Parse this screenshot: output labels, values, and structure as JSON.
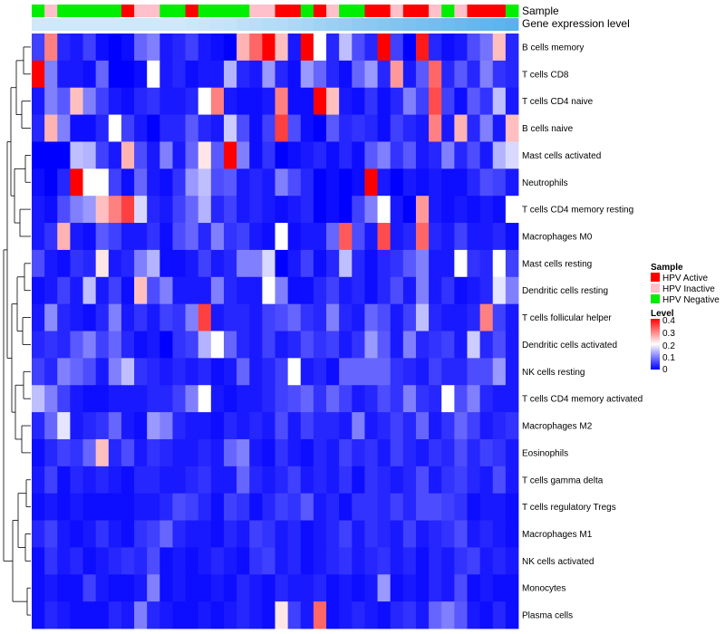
{
  "chart_data": {
    "type": "heatmap",
    "title": "",
    "annotation_labels": {
      "sample": "Sample",
      "expression": "Gene expression level"
    },
    "sample_categories": [
      "HPV Active",
      "HPV Inactive",
      "HPV Negative"
    ],
    "sample_colors": {
      "HPV Active": "#ff0000",
      "HPV Inactive": "#ffc0cb",
      "HPV Negative": "#00ee00"
    },
    "sample_groups": [
      "N",
      "I",
      "N",
      "N",
      "N",
      "N",
      "N",
      "A",
      "I",
      "I",
      "N",
      "N",
      "A",
      "N",
      "N",
      "N",
      "N",
      "I",
      "I",
      "A",
      "A",
      "N",
      "A",
      "I",
      "N",
      "N",
      "A",
      "A",
      "I",
      "A",
      "A",
      "I",
      "N",
      "I",
      "A",
      "A",
      "A",
      "N"
    ],
    "expression_levels": [
      0,
      0,
      0,
      0,
      0,
      0,
      0,
      0,
      0,
      0,
      0,
      0,
      0.02,
      0.05,
      0.08,
      0.1,
      0.15,
      0.18,
      0.22,
      0.25,
      0.3,
      0.35,
      0.4,
      0.45,
      0.5,
      0.55,
      0.58,
      0.62,
      0.66,
      0.7,
      0.74,
      0.78,
      0.82,
      0.86,
      0.9,
      0.93,
      0.97,
      1.0
    ],
    "expression_color_range": [
      "#cfe8fa",
      "#5ab2ec"
    ],
    "legend": {
      "sample_title": "Sample",
      "level_title": "Level",
      "level_ticks": [
        "0.4",
        "0.3",
        "0.2",
        "0.1",
        "0"
      ]
    },
    "color_scale": {
      "min": 0,
      "mid": 0.2,
      "max": 0.4,
      "colors": [
        "#0000ff",
        "#ffffff",
        "#ff0000"
      ]
    },
    "rows": [
      "B cells memory",
      "T cells CD8",
      "T cells CD4 naive",
      "B cells naive",
      "Mast cells activated",
      "Neutrophils",
      "T cells CD4 memory resting",
      "Macrophages M0",
      "Mast cells resting",
      "Dendritic cells resting",
      "T cells follicular helper",
      "Dendritic cells activated",
      "NK cells resting",
      "T cells CD4 memory activated",
      "Macrophages M2",
      "Eosinophils",
      "T cells gamma delta",
      "T cells regulatory  Tregs",
      "Macrophages M1",
      "NK cells activated",
      "Monocytes",
      "Plasma cells"
    ],
    "values": [
      [
        0.05,
        0.3,
        0.03,
        0.02,
        0.05,
        0.01,
        0.0,
        0.01,
        0.08,
        0.1,
        0.02,
        0.03,
        0.05,
        0.02,
        0.01,
        0.0,
        0.26,
        0.32,
        0.4,
        0.25,
        0.02,
        0.4,
        0.2,
        0.03,
        0.15,
        0.06,
        0.03,
        0.4,
        0.05,
        0.0,
        0.38,
        0.03,
        0.01,
        0.02,
        0.06,
        0.09,
        0.25,
        0.03
      ],
      [
        0.4,
        0.1,
        0.02,
        0.02,
        0.01,
        0.08,
        0.0,
        0.0,
        0.01,
        0.2,
        0.02,
        0.03,
        0.01,
        0.02,
        0.02,
        0.14,
        0.03,
        0.02,
        0.12,
        0.03,
        0.01,
        0.12,
        0.08,
        0.03,
        0.01,
        0.08,
        0.12,
        0.03,
        0.28,
        0.02,
        0.07,
        0.32,
        0.03,
        0.07,
        0.03,
        0.1,
        0.04,
        0.03
      ],
      [
        0.02,
        0.1,
        0.07,
        0.25,
        0.1,
        0.05,
        0.02,
        0.01,
        0.03,
        0.04,
        0.02,
        0.02,
        0.03,
        0.2,
        0.3,
        0.02,
        0.01,
        0.01,
        0.02,
        0.3,
        0.01,
        0.01,
        0.4,
        0.25,
        0.02,
        0.01,
        0.04,
        0.01,
        0.03,
        0.1,
        0.05,
        0.34,
        0.05,
        0.01,
        0.07,
        0.04,
        0.15,
        0.02
      ],
      [
        0.03,
        0.26,
        0.1,
        0.01,
        0.01,
        0.03,
        0.2,
        0.05,
        0.02,
        0.0,
        0.03,
        0.03,
        0.07,
        0.03,
        0.02,
        0.16,
        0.06,
        0.01,
        0.05,
        0.35,
        0.06,
        0.01,
        0.0,
        0.07,
        0.03,
        0.04,
        0.03,
        0.01,
        0.05,
        0.03,
        0.02,
        0.3,
        0.02,
        0.26,
        0.03,
        0.1,
        0.02,
        0.25
      ],
      [
        0.0,
        0.0,
        0.0,
        0.15,
        0.14,
        0.05,
        0.02,
        0.26,
        0.06,
        0.02,
        0.1,
        0.02,
        0.08,
        0.22,
        0.07,
        0.4,
        0.1,
        0.01,
        0.04,
        0.0,
        0.01,
        0.02,
        0.03,
        0.01,
        0.03,
        0.01,
        0.07,
        0.1,
        0.04,
        0.07,
        0.02,
        0.03,
        0.1,
        0.03,
        0.06,
        0.02,
        0.14,
        0.17
      ],
      [
        0.01,
        0.0,
        0.03,
        0.4,
        0.2,
        0.2,
        0.05,
        0.01,
        0.08,
        0.02,
        0.01,
        0.04,
        0.12,
        0.15,
        0.06,
        0.07,
        0.02,
        0.03,
        0.02,
        0.1,
        0.06,
        0.03,
        0.0,
        0.01,
        0.0,
        0.01,
        0.4,
        0.02,
        0.0,
        0.02,
        0.01,
        0.02,
        0.01,
        0.01,
        0.03,
        0.06,
        0.05,
        0.02
      ],
      [
        0.02,
        0.01,
        0.06,
        0.1,
        0.12,
        0.25,
        0.3,
        0.35,
        0.17,
        0.03,
        0.02,
        0.05,
        0.08,
        0.14,
        0.03,
        0.05,
        0.02,
        0.03,
        0.02,
        0.01,
        0.02,
        0.03,
        0.0,
        0.01,
        0.0,
        0.05,
        0.1,
        0.2,
        0.02,
        0.0,
        0.28,
        0.02,
        0.01,
        0.02,
        0.01,
        0.02,
        0.01,
        0.2
      ],
      [
        0.02,
        0.04,
        0.26,
        0.02,
        0.01,
        0.07,
        0.05,
        0.02,
        0.02,
        0.04,
        0.01,
        0.06,
        0.08,
        0.03,
        0.1,
        0.04,
        0.05,
        0.02,
        0.01,
        0.2,
        0.01,
        0.02,
        0.02,
        0.08,
        0.33,
        0.06,
        0.02,
        0.34,
        0.02,
        0.03,
        0.32,
        0.03,
        0.02,
        0.05,
        0.02,
        0.02,
        0.03,
        0.01
      ],
      [
        0.06,
        0.02,
        0.01,
        0.04,
        0.03,
        0.22,
        0.02,
        0.03,
        0.1,
        0.14,
        0.01,
        0.01,
        0.02,
        0.05,
        0.02,
        0.03,
        0.1,
        0.1,
        0.17,
        0.0,
        0.02,
        0.05,
        0.01,
        0.03,
        0.15,
        0.03,
        0.01,
        0.03,
        0.04,
        0.07,
        0.1,
        0.02,
        0.02,
        0.2,
        0.04,
        0.03,
        0.2,
        0.05
      ],
      [
        0.01,
        0.02,
        0.05,
        0.02,
        0.15,
        0.02,
        0.05,
        0.01,
        0.25,
        0.06,
        0.1,
        0.02,
        0.02,
        0.02,
        0.1,
        0.03,
        0.02,
        0.02,
        0.2,
        0.1,
        0.01,
        0.01,
        0.03,
        0.05,
        0.02,
        0.03,
        0.01,
        0.03,
        0.06,
        0.02,
        0.1,
        0.02,
        0.04,
        0.01,
        0.02,
        0.03,
        0.18,
        0.1
      ],
      [
        0.02,
        0.11,
        0.03,
        0.02,
        0.01,
        0.03,
        0.1,
        0.02,
        0.04,
        0.02,
        0.05,
        0.04,
        0.1,
        0.35,
        0.02,
        0.03,
        0.03,
        0.02,
        0.05,
        0.06,
        0.08,
        0.04,
        0.03,
        0.1,
        0.03,
        0.02,
        0.08,
        0.06,
        0.02,
        0.05,
        0.15,
        0.03,
        0.02,
        0.02,
        0.03,
        0.3,
        0.05,
        0.02
      ],
      [
        0.03,
        0.04,
        0.03,
        0.07,
        0.1,
        0.05,
        0.08,
        0.03,
        0.01,
        0.02,
        0.0,
        0.04,
        0.05,
        0.14,
        0.2,
        0.08,
        0.03,
        0.02,
        0.05,
        0.02,
        0.03,
        0.06,
        0.04,
        0.05,
        0.02,
        0.04,
        0.12,
        0.07,
        0.02,
        0.1,
        0.03,
        0.04,
        0.05,
        0.02,
        0.16,
        0.03,
        0.06,
        0.02
      ],
      [
        0.05,
        0.03,
        0.1,
        0.08,
        0.06,
        0.02,
        0.1,
        0.15,
        0.04,
        0.03,
        0.02,
        0.03,
        0.02,
        0.03,
        0.01,
        0.02,
        0.08,
        0.02,
        0.03,
        0.05,
        0.2,
        0.02,
        0.03,
        0.01,
        0.08,
        0.08,
        0.08,
        0.08,
        0.04,
        0.03,
        0.02,
        0.05,
        0.03,
        0.03,
        0.06,
        0.06,
        0.12,
        0.02
      ],
      [
        0.15,
        0.1,
        0.05,
        0.02,
        0.01,
        0.01,
        0.02,
        0.02,
        0.02,
        0.03,
        0.03,
        0.05,
        0.1,
        0.2,
        0.02,
        0.01,
        0.02,
        0.02,
        0.03,
        0.05,
        0.06,
        0.08,
        0.04,
        0.08,
        0.05,
        0.02,
        0.03,
        0.06,
        0.04,
        0.1,
        0.04,
        0.03,
        0.2,
        0.06,
        0.1,
        0.03,
        0.02,
        0.02
      ],
      [
        0.03,
        0.08,
        0.18,
        0.02,
        0.03,
        0.04,
        0.08,
        0.02,
        0.01,
        0.12,
        0.1,
        0.03,
        0.02,
        0.02,
        0.01,
        0.03,
        0.02,
        0.03,
        0.02,
        0.06,
        0.02,
        0.05,
        0.03,
        0.03,
        0.02,
        0.1,
        0.02,
        0.03,
        0.05,
        0.03,
        0.08,
        0.02,
        0.04,
        0.08,
        0.05,
        0.02,
        0.03,
        0.04
      ],
      [
        0.01,
        0.03,
        0.05,
        0.04,
        0.08,
        0.25,
        0.03,
        0.06,
        0.02,
        0.04,
        0.03,
        0.02,
        0.02,
        0.03,
        0.02,
        0.08,
        0.1,
        0.02,
        0.01,
        0.04,
        0.02,
        0.01,
        0.03,
        0.02,
        0.05,
        0.03,
        0.04,
        0.02,
        0.05,
        0.03,
        0.02,
        0.04,
        0.03,
        0.06,
        0.03,
        0.05,
        0.04,
        0.02
      ],
      [
        0.02,
        0.05,
        0.01,
        0.03,
        0.02,
        0.03,
        0.02,
        0.01,
        0.03,
        0.03,
        0.02,
        0.02,
        0.03,
        0.04,
        0.02,
        0.02,
        0.08,
        0.03,
        0.02,
        0.03,
        0.05,
        0.02,
        0.03,
        0.02,
        0.04,
        0.01,
        0.04,
        0.03,
        0.02,
        0.03,
        0.06,
        0.02,
        0.04,
        0.05,
        0.03,
        0.02,
        0.06,
        0.02
      ],
      [
        0.01,
        0.02,
        0.01,
        0.02,
        0.01,
        0.01,
        0.01,
        0.01,
        0.02,
        0.02,
        0.03,
        0.06,
        0.05,
        0.03,
        0.01,
        0.05,
        0.04,
        0.01,
        0.03,
        0.05,
        0.04,
        0.07,
        0.02,
        0.03,
        0.01,
        0.04,
        0.04,
        0.03,
        0.05,
        0.03,
        0.06,
        0.06,
        0.05,
        0.04,
        0.01,
        0.02,
        0.02,
        0.01
      ],
      [
        0.03,
        0.05,
        0.02,
        0.01,
        0.02,
        0.04,
        0.02,
        0.01,
        0.04,
        0.05,
        0.08,
        0.03,
        0.02,
        0.02,
        0.01,
        0.03,
        0.02,
        0.05,
        0.04,
        0.02,
        0.03,
        0.01,
        0.02,
        0.03,
        0.05,
        0.02,
        0.04,
        0.03,
        0.02,
        0.05,
        0.02,
        0.03,
        0.04,
        0.06,
        0.02,
        0.03,
        0.02,
        0.01
      ],
      [
        0.01,
        0.04,
        0.02,
        0.03,
        0.01,
        0.02,
        0.03,
        0.04,
        0.03,
        0.06,
        0.01,
        0.02,
        0.01,
        0.02,
        0.03,
        0.02,
        0.01,
        0.04,
        0.05,
        0.02,
        0.03,
        0.01,
        0.02,
        0.03,
        0.04,
        0.02,
        0.03,
        0.04,
        0.02,
        0.03,
        0.01,
        0.03,
        0.02,
        0.04,
        0.05,
        0.02,
        0.03,
        0.02
      ],
      [
        0.01,
        0.02,
        0.01,
        0.01,
        0.05,
        0.02,
        0.01,
        0.01,
        0.02,
        0.1,
        0.01,
        0.02,
        0.01,
        0.01,
        0.02,
        0.01,
        0.03,
        0.02,
        0.01,
        0.03,
        0.02,
        0.02,
        0.03,
        0.01,
        0.02,
        0.01,
        0.02,
        0.12,
        0.01,
        0.02,
        0.01,
        0.03,
        0.02,
        0.06,
        0.01,
        0.02,
        0.01,
        0.01
      ],
      [
        0.01,
        0.03,
        0.02,
        0.01,
        0.01,
        0.01,
        0.03,
        0.02,
        0.1,
        0.03,
        0.02,
        0.01,
        0.01,
        0.02,
        0.01,
        0.02,
        0.03,
        0.02,
        0.01,
        0.22,
        0.05,
        0.02,
        0.32,
        0.01,
        0.02,
        0.03,
        0.02,
        0.01,
        0.03,
        0.04,
        0.02,
        0.08,
        0.1,
        0.07,
        0.02,
        0.01,
        0.03,
        0.01
      ]
    ]
  }
}
